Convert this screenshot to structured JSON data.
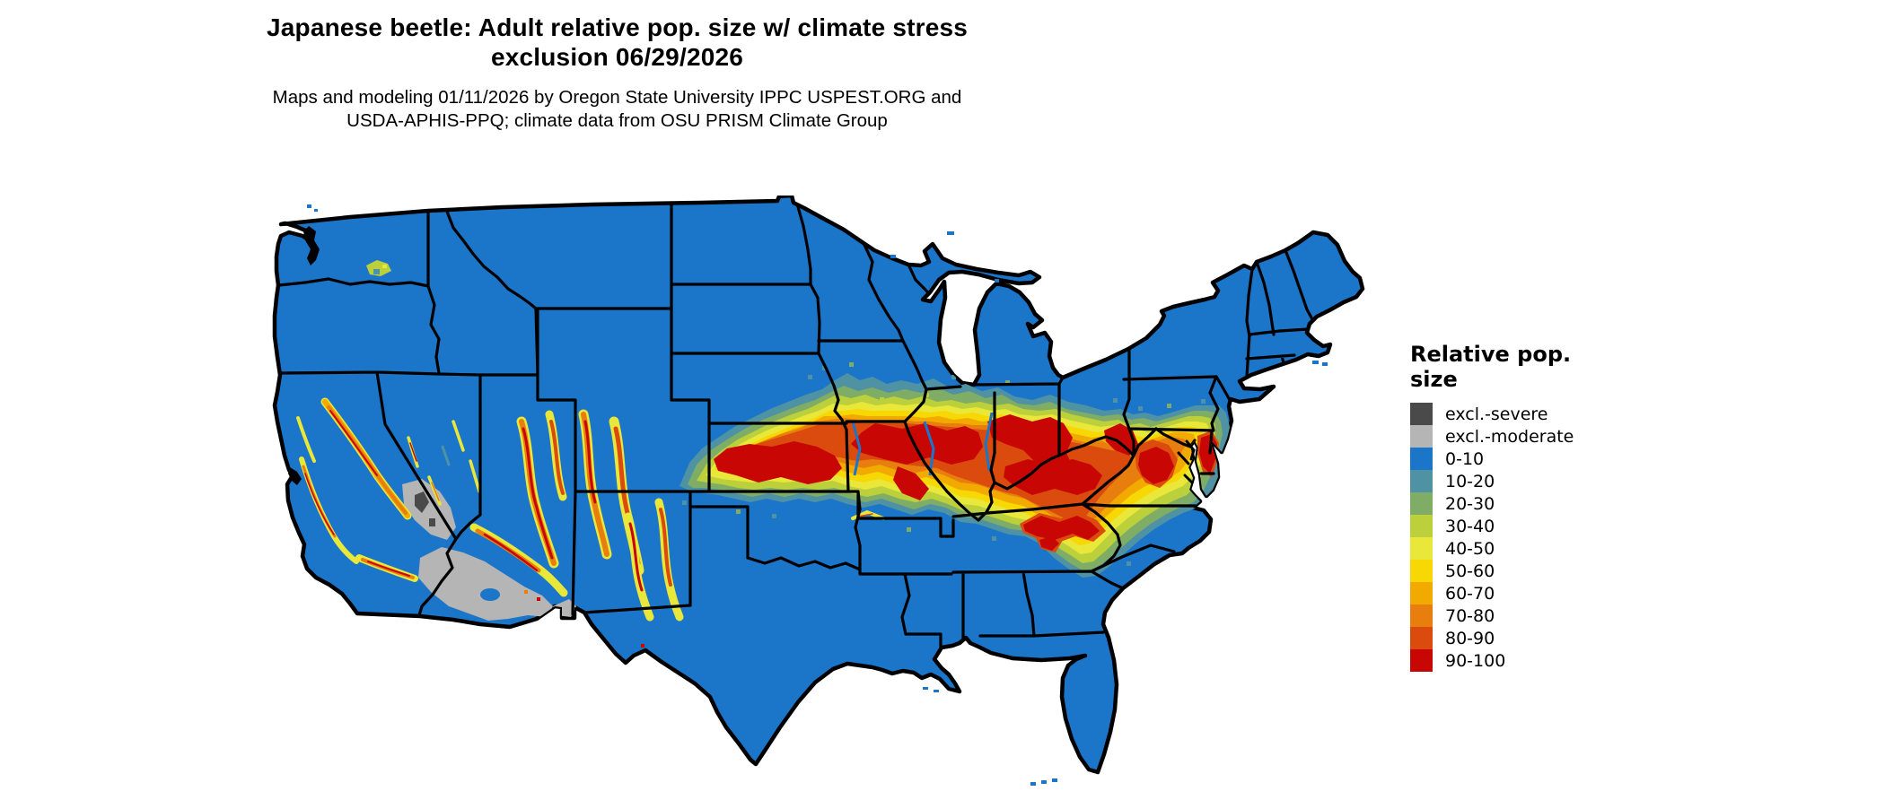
{
  "header": {
    "title_line1": "Japanese beetle: Adult relative pop. size w/ climate stress",
    "title_line2": "exclusion 06/29/2026",
    "subtitle_line1": "Maps and modeling 01/11/2026 by Oregon State University IPPC USPEST.ORG and",
    "subtitle_line2": "USDA-APHIS-PPQ; climate data from OSU PRISM Climate Group"
  },
  "legend": {
    "title": "Relative pop. size",
    "items": [
      {
        "label": "excl.-severe",
        "color": "#4a4a4a"
      },
      {
        "label": "excl.-moderate",
        "color": "#b5b5b5"
      },
      {
        "label": "0-10",
        "color": "#1b75c9"
      },
      {
        "label": "10-20",
        "color": "#4e92a4"
      },
      {
        "label": "20-30",
        "color": "#7fad66"
      },
      {
        "label": "30-40",
        "color": "#bcd03c"
      },
      {
        "label": "40-50",
        "color": "#e8e73a"
      },
      {
        "label": "50-60",
        "color": "#f8d804"
      },
      {
        "label": "60-70",
        "color": "#f2a900"
      },
      {
        "label": "70-80",
        "color": "#e87e0e"
      },
      {
        "label": "80-90",
        "color": "#da4b0d"
      },
      {
        "label": "90-100",
        "color": "#c80604"
      }
    ]
  },
  "palette": {
    "severe": "#4a4a4a",
    "moderate": "#b5b5b5",
    "p0_10": "#1b75c9",
    "p10_20": "#4e92a4",
    "p20_30": "#7fad66",
    "p30_40": "#bcd03c",
    "p40_50": "#e8e73a",
    "p50_60": "#f8d804",
    "p60_70": "#f2a900",
    "p70_80": "#e87e0e",
    "p80_90": "#da4b0d",
    "p90_100": "#c80604",
    "land": "#1b75c9",
    "border": "#000000",
    "water": "#ffffff"
  },
  "map": {
    "region": "continental-united-states",
    "land_value_class": "0-10",
    "state_border_color": "#000000",
    "background_color": "#ffffff"
  }
}
